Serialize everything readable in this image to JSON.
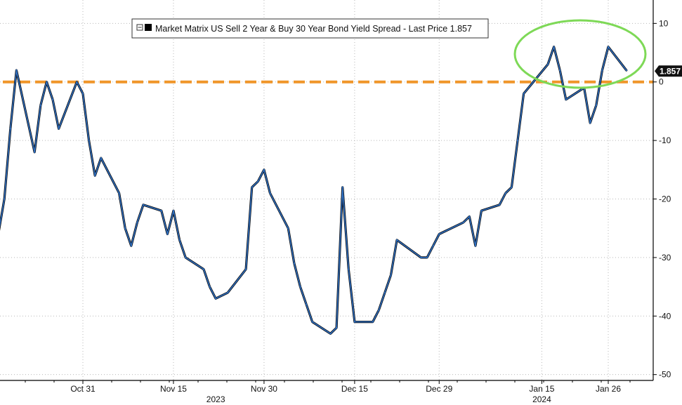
{
  "chart_data": {
    "type": "line",
    "title": "",
    "xlabel": "",
    "ylabel": "",
    "legend_label": "Market Matrix US Sell 2 Year & Buy 30 Year Bond Yield Spread - Last Price 1.857",
    "legend_position": "top-center",
    "last_price": 1.857,
    "last_price_label": "1.857",
    "ylim": [
      -51,
      14
    ],
    "y_ticks": [
      10,
      0,
      -10,
      -20,
      -30,
      -40,
      -50
    ],
    "y_axis_side": "right",
    "reference_line": {
      "y": 0,
      "style": "dashed",
      "color": "#f0962a"
    },
    "highlight": {
      "shape": "ellipse",
      "color": "#7ed957",
      "region": "Jan 15 - Jan 26 peak"
    },
    "grid": true,
    "x_ticks": [
      "Oct 31",
      "Nov 15",
      "Nov 30",
      "Dec 15",
      "Dec 29",
      "Jan 15",
      "Jan 26"
    ],
    "year_labels": [
      "2023",
      "2024"
    ],
    "series": [
      {
        "name": "Market Matrix US Sell 2 Year & Buy 30 Year Bond Yield Spread",
        "color": "#2f6fc1",
        "x": [
          "Oct 17",
          "Oct 18",
          "Oct 19",
          "Oct 20",
          "Oct 23",
          "Oct 24",
          "Oct 25",
          "Oct 26",
          "Oct 27",
          "Oct 30",
          "Oct 31",
          "Nov 1",
          "Nov 2",
          "Nov 3",
          "Nov 6",
          "Nov 7",
          "Nov 8",
          "Nov 9",
          "Nov 10",
          "Nov 13",
          "Nov 14",
          "Nov 15",
          "Nov 16",
          "Nov 17",
          "Nov 20",
          "Nov 21",
          "Nov 22",
          "Nov 24",
          "Nov 27",
          "Nov 28",
          "Nov 29",
          "Nov 30",
          "Dec 1",
          "Dec 4",
          "Dec 5",
          "Dec 6",
          "Dec 7",
          "Dec 8",
          "Dec 11",
          "Dec 12",
          "Dec 13",
          "Dec 14",
          "Dec 15",
          "Dec 18",
          "Dec 19",
          "Dec 20",
          "Dec 21",
          "Dec 22",
          "Dec 26",
          "Dec 27",
          "Dec 28",
          "Dec 29",
          "Jan 2",
          "Jan 3",
          "Jan 4",
          "Jan 5",
          "Jan 8",
          "Jan 9",
          "Jan 10",
          "Jan 11",
          "Jan 12",
          "Jan 16",
          "Jan 17",
          "Jan 18",
          "Jan 19",
          "Jan 22",
          "Jan 23",
          "Jan 24",
          "Jan 25",
          "Jan 26",
          "Jan 29"
        ],
        "values": [
          -26,
          -20,
          -8,
          2,
          -12,
          -4,
          0,
          -3,
          -8,
          0,
          -2,
          -10,
          -16,
          -13,
          -19,
          -25,
          -28,
          -24,
          -21,
          -22,
          -26,
          -22,
          -27,
          -30,
          -32,
          -35,
          -37,
          -36,
          -32,
          -18,
          -17,
          -15,
          -19,
          -25,
          -31,
          -35,
          -38,
          -41,
          -43,
          -42,
          -18,
          -32,
          -41,
          -41,
          -39,
          -36,
          -33,
          -27,
          -30,
          -30,
          -28,
          -26,
          -24,
          -23,
          -28,
          -22,
          -21,
          -19,
          -18,
          -10,
          -2,
          3,
          6,
          2,
          -3,
          -1,
          -7,
          -4,
          2,
          6,
          2
        ]
      }
    ]
  }
}
